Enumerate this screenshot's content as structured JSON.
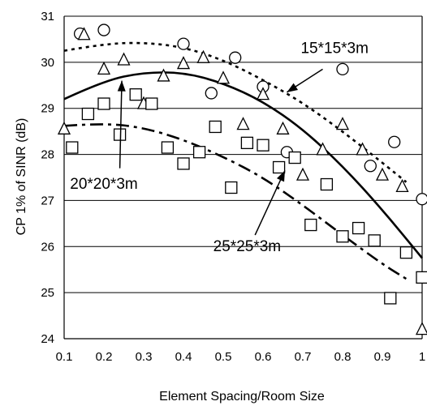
{
  "chart_data": {
    "type": "scatter",
    "xlabel": "Element Spacing/Room Size",
    "ylabel": "CP 1% of SINR (dB)",
    "xlim": [
      0.1,
      1.0
    ],
    "ylim": [
      24,
      31
    ],
    "xticks": [
      0.1,
      0.2,
      0.3,
      0.4,
      0.5,
      0.6,
      0.7,
      0.8,
      0.9,
      1.0
    ],
    "xtick_labels": [
      "0.1",
      "0.2",
      "0.3",
      "0.4",
      "0.5",
      "0.6",
      "0.7",
      "0.8",
      "0.9",
      "1"
    ],
    "yticks": [
      24,
      25,
      26,
      27,
      28,
      29,
      30,
      31
    ],
    "ytick_labels": [
      "24",
      "25",
      "26",
      "27",
      "28",
      "29",
      "30",
      "31"
    ],
    "grid": "horizontal",
    "series": [
      {
        "name": "15*15*3m",
        "marker": "circle",
        "fit_style": "dotted",
        "points": [
          [
            0.14,
            30.62
          ],
          [
            0.2,
            30.7
          ],
          [
            0.4,
            30.4
          ],
          [
            0.47,
            29.33
          ],
          [
            0.53,
            30.1
          ],
          [
            0.6,
            29.47
          ],
          [
            0.66,
            28.05
          ],
          [
            0.8,
            29.85
          ],
          [
            0.87,
            27.75
          ],
          [
            0.93,
            28.27
          ],
          [
            1.0,
            27.03
          ]
        ],
        "fit": [
          [
            0.1,
            30.25
          ],
          [
            0.2,
            30.4
          ],
          [
            0.3,
            30.43
          ],
          [
            0.4,
            30.33
          ],
          [
            0.5,
            30.05
          ],
          [
            0.6,
            29.62
          ],
          [
            0.7,
            29.12
          ],
          [
            0.8,
            28.5
          ],
          [
            0.9,
            27.82
          ],
          [
            0.96,
            27.4
          ]
        ]
      },
      {
        "name": "20*20*3m",
        "marker": "triangle",
        "fit_style": "solid",
        "points": [
          [
            0.1,
            28.55
          ],
          [
            0.15,
            30.6
          ],
          [
            0.2,
            29.85
          ],
          [
            0.25,
            30.05
          ],
          [
            0.3,
            29.1
          ],
          [
            0.35,
            29.7
          ],
          [
            0.4,
            29.97
          ],
          [
            0.45,
            30.1
          ],
          [
            0.5,
            29.65
          ],
          [
            0.55,
            28.65
          ],
          [
            0.6,
            29.3
          ],
          [
            0.65,
            28.55
          ],
          [
            0.7,
            27.55
          ],
          [
            0.75,
            28.1
          ],
          [
            0.8,
            28.65
          ],
          [
            0.85,
            28.1
          ],
          [
            0.9,
            27.55
          ],
          [
            0.95,
            27.3
          ],
          [
            1.0,
            24.2
          ]
        ],
        "fit": [
          [
            0.1,
            29.2
          ],
          [
            0.2,
            29.6
          ],
          [
            0.3,
            29.78
          ],
          [
            0.4,
            29.78
          ],
          [
            0.5,
            29.55
          ],
          [
            0.6,
            29.15
          ],
          [
            0.7,
            28.55
          ],
          [
            0.8,
            27.75
          ],
          [
            0.9,
            26.8
          ],
          [
            1.0,
            25.75
          ]
        ]
      },
      {
        "name": "25*25*3m",
        "marker": "square",
        "fit_style": "dashed",
        "points": [
          [
            0.12,
            28.15
          ],
          [
            0.16,
            28.88
          ],
          [
            0.2,
            29.1
          ],
          [
            0.24,
            28.43
          ],
          [
            0.28,
            29.3
          ],
          [
            0.32,
            29.1
          ],
          [
            0.36,
            28.15
          ],
          [
            0.4,
            27.8
          ],
          [
            0.44,
            28.05
          ],
          [
            0.48,
            28.6
          ],
          [
            0.52,
            27.28
          ],
          [
            0.56,
            28.25
          ],
          [
            0.6,
            28.2
          ],
          [
            0.64,
            27.72
          ],
          [
            0.68,
            27.93
          ],
          [
            0.72,
            26.47
          ],
          [
            0.76,
            27.35
          ],
          [
            0.8,
            26.22
          ],
          [
            0.84,
            26.4
          ],
          [
            0.88,
            26.13
          ],
          [
            0.92,
            24.88
          ],
          [
            0.96,
            25.87
          ],
          [
            1.0,
            25.33
          ]
        ],
        "fit": [
          [
            0.1,
            28.62
          ],
          [
            0.2,
            28.68
          ],
          [
            0.3,
            28.58
          ],
          [
            0.4,
            28.32
          ],
          [
            0.5,
            27.95
          ],
          [
            0.6,
            27.5
          ],
          [
            0.7,
            26.9
          ],
          [
            0.8,
            26.25
          ],
          [
            0.9,
            25.62
          ],
          [
            0.96,
            25.3
          ]
        ]
      }
    ],
    "annotations": [
      {
        "text": "15*15*3m",
        "label_x": 0.78,
        "label_y": 30.2,
        "arrow_from": [
          0.75,
          29.85
        ],
        "arrow_to": [
          0.66,
          29.35
        ]
      },
      {
        "text": "20*20*3m",
        "label_x": 0.2,
        "label_y": 27.25,
        "arrow_from": [
          0.24,
          27.7
        ],
        "arrow_to": [
          0.245,
          29.6
        ]
      },
      {
        "text": "25*25*3m",
        "label_x": 0.56,
        "label_y": 25.9,
        "arrow_from": [
          0.58,
          26.25
        ],
        "arrow_to": [
          0.655,
          27.65
        ]
      }
    ]
  }
}
